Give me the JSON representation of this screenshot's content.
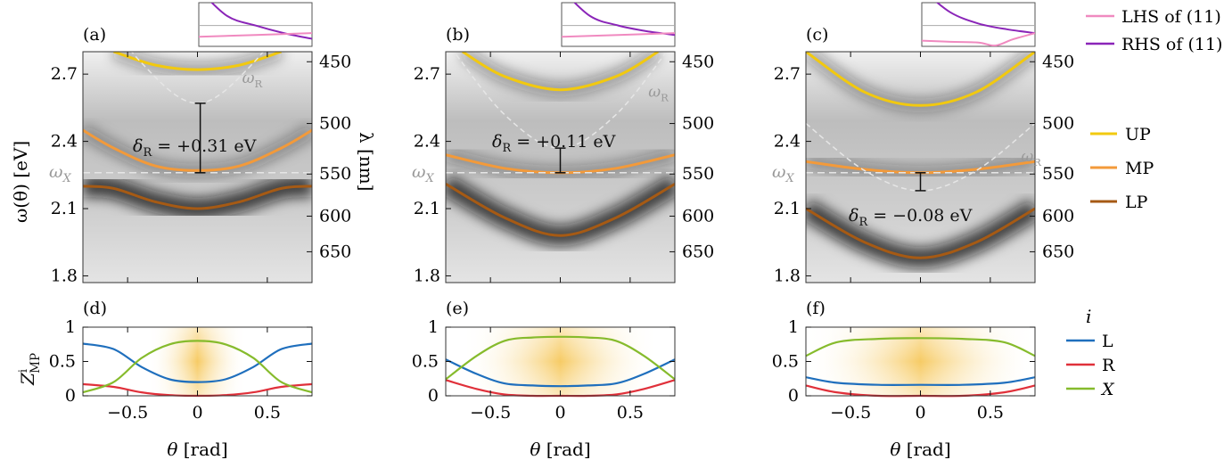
{
  "colors": {
    "UP": "#f2c90f",
    "MP": "#f39a3a",
    "LP": "#a65a14",
    "L": "#1f6fbd",
    "R": "#e0303a",
    "X": "#86bb2c",
    "LHS": "#f08ac0",
    "RHS": "#8a25b8",
    "omega_lines": "#e6e6e6"
  },
  "legends": {
    "top": [
      {
        "key": "LHS",
        "label": "LHS of (11)"
      },
      {
        "key": "RHS",
        "label": "RHS of (11)"
      }
    ],
    "middle": [
      {
        "key": "UP",
        "label": "UP"
      },
      {
        "key": "MP",
        "label": "MP"
      },
      {
        "key": "LP",
        "label": "LP"
      }
    ],
    "bottom_title": "i",
    "bottom": [
      {
        "key": "L",
        "label": "L"
      },
      {
        "key": "R",
        "label": "R"
      },
      {
        "key": "X",
        "label": "X"
      }
    ]
  },
  "axes": {
    "top_ylabel": "ω(θ) [eV]",
    "right_ylabel": "λ [nm]",
    "bottom_ylabel": "Z",
    "bottom_ylabel_sup": "i",
    "bottom_ylabel_sub": "MP",
    "xlabel": "θ [rad]",
    "omega_X_label": "ω",
    "omega_X_sub": "X",
    "omega_R_label": "ω",
    "omega_R_sub": "R",
    "delta_prefix": "δ",
    "delta_sub": "R"
  },
  "chart_data": [
    {
      "type": "line",
      "panel": "(a)",
      "xlim": [
        -0.82,
        0.82
      ],
      "ylim": [
        1.77,
        2.8
      ],
      "yticks": [
        "1.8",
        "2.1",
        "2.4",
        "2.7"
      ],
      "yticks_values": [
        1.8,
        2.1,
        2.4,
        2.7
      ],
      "right_ticks": [
        "450",
        "500",
        "550",
        "600",
        "650"
      ],
      "right_ticks_nm": [
        450,
        500,
        550,
        600,
        650
      ],
      "omega_X": 2.26,
      "delta_text": "= +0.31 eV",
      "delta_bar_eV": [
        2.26,
        2.57
      ],
      "series": [
        {
          "name": "UP",
          "points": [
            [
              -0.6,
              2.8
            ],
            [
              -0.3,
              2.74
            ],
            [
              0,
              2.72
            ],
            [
              0.3,
              2.74
            ],
            [
              0.6,
              2.8
            ]
          ]
        },
        {
          "name": "MP",
          "points": [
            [
              -0.82,
              2.45
            ],
            [
              -0.6,
              2.37
            ],
            [
              -0.3,
              2.29
            ],
            [
              0,
              2.27
            ],
            [
              0.3,
              2.29
            ],
            [
              0.6,
              2.37
            ],
            [
              0.82,
              2.45
            ]
          ]
        },
        {
          "name": "LP",
          "points": [
            [
              -0.82,
              2.2
            ],
            [
              -0.6,
              2.19
            ],
            [
              -0.3,
              2.13
            ],
            [
              0,
              2.1
            ],
            [
              0.3,
              2.13
            ],
            [
              0.6,
              2.19
            ],
            [
              0.82,
              2.2
            ]
          ]
        },
        {
          "name": "ω_R",
          "dashed": true,
          "points": [
            [
              -0.82,
              3.1
            ],
            [
              -0.4,
              2.75
            ],
            [
              0,
              2.57
            ],
            [
              0.4,
              2.75
            ],
            [
              0.82,
              3.1
            ]
          ]
        }
      ],
      "inset": {
        "LHS": [
          [
            -1,
            0.25
          ],
          [
            1,
            0.35
          ]
        ],
        "RHS": [
          [
            -1,
            1.5
          ],
          [
            -0.5,
            0.8
          ],
          [
            0,
            0.55
          ],
          [
            0.5,
            0.35
          ],
          [
            1,
            0.2
          ]
        ]
      }
    },
    {
      "type": "line",
      "panel": "(b)",
      "xlim": [
        -0.82,
        0.82
      ],
      "ylim": [
        1.77,
        2.8
      ],
      "yticks": [
        "1.8",
        "2.1",
        "2.4",
        "2.7"
      ],
      "yticks_values": [
        1.8,
        2.1,
        2.4,
        2.7
      ],
      "right_ticks": [
        "450",
        "500",
        "550",
        "600",
        "650"
      ],
      "right_ticks_nm": [
        450,
        500,
        550,
        600,
        650
      ],
      "omega_X": 2.26,
      "delta_text": "= +0.11 eV",
      "delta_bar_eV": [
        2.26,
        2.37
      ],
      "series": [
        {
          "name": "UP",
          "points": [
            [
              -0.7,
              2.8
            ],
            [
              -0.4,
              2.69
            ],
            [
              0,
              2.63
            ],
            [
              0.4,
              2.69
            ],
            [
              0.7,
              2.8
            ]
          ]
        },
        {
          "name": "MP",
          "points": [
            [
              -0.82,
              2.34
            ],
            [
              -0.4,
              2.28
            ],
            [
              0,
              2.26
            ],
            [
              0.4,
              2.28
            ],
            [
              0.82,
              2.34
            ]
          ]
        },
        {
          "name": "LP",
          "points": [
            [
              -0.82,
              2.21
            ],
            [
              -0.4,
              2.06
            ],
            [
              0,
              1.98
            ],
            [
              0.4,
              2.06
            ],
            [
              0.82,
              2.21
            ]
          ]
        },
        {
          "name": "ω_R",
          "dashed": true,
          "points": [
            [
              -0.82,
              2.85
            ],
            [
              -0.4,
              2.52
            ],
            [
              0,
              2.37
            ],
            [
              0.4,
              2.52
            ],
            [
              0.82,
              2.85
            ]
          ]
        }
      ],
      "inset": {
        "LHS": [
          [
            -1,
            0.25
          ],
          [
            1,
            0.35
          ]
        ],
        "RHS": [
          [
            -1,
            1.5
          ],
          [
            -0.5,
            0.8
          ],
          [
            0,
            0.55
          ],
          [
            0.5,
            0.4
          ],
          [
            1,
            0.3
          ]
        ]
      }
    },
    {
      "type": "line",
      "panel": "(c)",
      "xlim": [
        -0.82,
        0.82
      ],
      "ylim": [
        1.77,
        2.8
      ],
      "yticks": [
        "1.8",
        "2.1",
        "2.4",
        "2.7"
      ],
      "yticks_values": [
        1.8,
        2.1,
        2.4,
        2.7
      ],
      "right_ticks": [
        "450",
        "500",
        "550",
        "600",
        "650"
      ],
      "right_ticks_nm": [
        450,
        500,
        550,
        600,
        650
      ],
      "omega_X": 2.26,
      "delta_text": "= −0.08 eV",
      "delta_bar_eV": [
        2.18,
        2.26
      ],
      "series": [
        {
          "name": "UP",
          "points": [
            [
              -0.82,
              2.8
            ],
            [
              -0.4,
              2.62
            ],
            [
              0,
              2.56
            ],
            [
              0.4,
              2.62
            ],
            [
              0.82,
              2.8
            ]
          ]
        },
        {
          "name": "MP",
          "points": [
            [
              -0.82,
              2.31
            ],
            [
              -0.4,
              2.275
            ],
            [
              0,
              2.26
            ],
            [
              0.4,
              2.275
            ],
            [
              0.82,
              2.31
            ]
          ]
        },
        {
          "name": "LP",
          "points": [
            [
              -0.82,
              2.1
            ],
            [
              -0.4,
              1.95
            ],
            [
              0,
              1.88
            ],
            [
              0.4,
              1.95
            ],
            [
              0.82,
              2.1
            ]
          ]
        },
        {
          "name": "ω_R",
          "dashed": true,
          "points": [
            [
              -0.82,
              2.48
            ],
            [
              -0.4,
              2.27
            ],
            [
              0,
              2.18
            ],
            [
              0.4,
              2.27
            ],
            [
              0.82,
              2.48
            ]
          ]
        }
      ],
      "inset": {
        "LHS": [
          [
            -1,
            0.15
          ],
          [
            -0.5,
            0.12
          ],
          [
            0,
            0.1
          ],
          [
            0.3,
            0.02
          ],
          [
            0.6,
            0.18
          ],
          [
            1,
            0.35
          ]
        ],
        "RHS": [
          [
            -1,
            1.5
          ],
          [
            -0.5,
            0.9
          ],
          [
            0,
            0.6
          ],
          [
            0.5,
            0.45
          ],
          [
            1,
            0.35
          ]
        ]
      }
    },
    {
      "type": "line",
      "panel": "(d)",
      "xlim": [
        -0.82,
        0.82
      ],
      "ylim": [
        0,
        1
      ],
      "xticks": [
        "−0.5",
        "0",
        "0.5"
      ],
      "xticks_values": [
        -0.5,
        0,
        0.5
      ],
      "yticks": [
        "0",
        "0.5",
        "1"
      ],
      "yticks_values": [
        0,
        0.5,
        1
      ],
      "highlight_halfwidth": 0.35,
      "series": [
        {
          "name": "L",
          "points": [
            [
              -0.82,
              0.76
            ],
            [
              -0.6,
              0.68
            ],
            [
              -0.4,
              0.42
            ],
            [
              -0.2,
              0.24
            ],
            [
              0,
              0.2
            ],
            [
              0.2,
              0.24
            ],
            [
              0.4,
              0.42
            ],
            [
              0.6,
              0.68
            ],
            [
              0.82,
              0.76
            ]
          ]
        },
        {
          "name": "R",
          "points": [
            [
              -0.82,
              0.17
            ],
            [
              -0.6,
              0.13
            ],
            [
              -0.4,
              0.05
            ],
            [
              -0.2,
              0.01
            ],
            [
              0,
              0.0
            ],
            [
              0.2,
              0.01
            ],
            [
              0.4,
              0.05
            ],
            [
              0.6,
              0.13
            ],
            [
              0.82,
              0.17
            ]
          ]
        },
        {
          "name": "X",
          "points": [
            [
              -0.82,
              0.05
            ],
            [
              -0.6,
              0.2
            ],
            [
              -0.4,
              0.55
            ],
            [
              -0.2,
              0.75
            ],
            [
              0,
              0.8
            ],
            [
              0.2,
              0.75
            ],
            [
              0.4,
              0.55
            ],
            [
              0.6,
              0.2
            ],
            [
              0.82,
              0.05
            ]
          ]
        }
      ]
    },
    {
      "type": "line",
      "panel": "(e)",
      "xlim": [
        -0.82,
        0.82
      ],
      "ylim": [
        0,
        1
      ],
      "xticks": [
        "−0.5",
        "0",
        "0.5"
      ],
      "xticks_values": [
        -0.5,
        0,
        0.5
      ],
      "yticks": [
        "0",
        "0.5",
        "1"
      ],
      "yticks_values": [
        0,
        0.5,
        1
      ],
      "highlight_halfwidth": 0.7,
      "series": [
        {
          "name": "L",
          "points": [
            [
              -0.82,
              0.53
            ],
            [
              -0.6,
              0.32
            ],
            [
              -0.4,
              0.18
            ],
            [
              -0.2,
              0.15
            ],
            [
              0,
              0.14
            ],
            [
              0.2,
              0.15
            ],
            [
              0.4,
              0.18
            ],
            [
              0.6,
              0.32
            ],
            [
              0.82,
              0.53
            ]
          ]
        },
        {
          "name": "R",
          "points": [
            [
              -0.82,
              0.23
            ],
            [
              -0.6,
              0.1
            ],
            [
              -0.4,
              0.02
            ],
            [
              -0.2,
              0.0
            ],
            [
              0,
              0.0
            ],
            [
              0.2,
              0.0
            ],
            [
              0.4,
              0.02
            ],
            [
              0.6,
              0.1
            ],
            [
              0.82,
              0.23
            ]
          ]
        },
        {
          "name": "X",
          "points": [
            [
              -0.82,
              0.24
            ],
            [
              -0.6,
              0.58
            ],
            [
              -0.4,
              0.8
            ],
            [
              -0.2,
              0.85
            ],
            [
              0,
              0.86
            ],
            [
              0.2,
              0.85
            ],
            [
              0.4,
              0.8
            ],
            [
              0.6,
              0.58
            ],
            [
              0.82,
              0.24
            ]
          ]
        }
      ]
    },
    {
      "type": "line",
      "panel": "(f)",
      "xlim": [
        -0.82,
        0.82
      ],
      "ylim": [
        0,
        1
      ],
      "xticks": [
        "−0.5",
        "0",
        "0.5"
      ],
      "xticks_values": [
        -0.5,
        0,
        0.5
      ],
      "yticks": [
        "0",
        "0.5",
        "1"
      ],
      "yticks_values": [
        0,
        0.5,
        1
      ],
      "highlight_halfwidth": 0.82,
      "series": [
        {
          "name": "L",
          "points": [
            [
              -0.82,
              0.27
            ],
            [
              -0.6,
              0.19
            ],
            [
              -0.3,
              0.16
            ],
            [
              0,
              0.16
            ],
            [
              0.3,
              0.16
            ],
            [
              0.6,
              0.19
            ],
            [
              0.82,
              0.27
            ]
          ]
        },
        {
          "name": "R",
          "points": [
            [
              -0.82,
              0.15
            ],
            [
              -0.6,
              0.05
            ],
            [
              -0.3,
              0.0
            ],
            [
              0,
              0.0
            ],
            [
              0.3,
              0.0
            ],
            [
              0.6,
              0.05
            ],
            [
              0.82,
              0.15
            ]
          ]
        },
        {
          "name": "X",
          "points": [
            [
              -0.82,
              0.58
            ],
            [
              -0.6,
              0.78
            ],
            [
              -0.3,
              0.83
            ],
            [
              0,
              0.84
            ],
            [
              0.3,
              0.83
            ],
            [
              0.6,
              0.78
            ],
            [
              0.82,
              0.58
            ]
          ]
        }
      ]
    }
  ]
}
